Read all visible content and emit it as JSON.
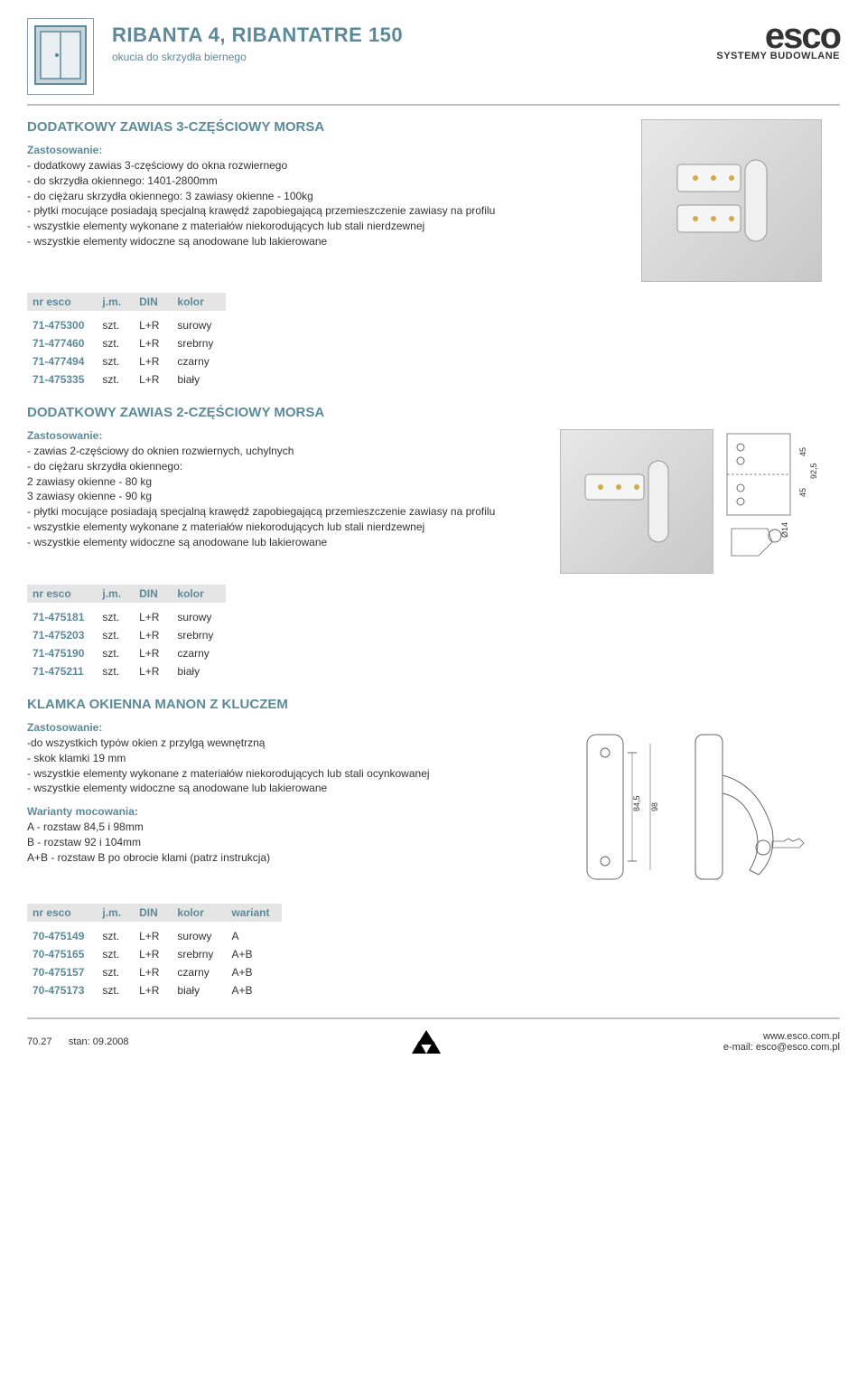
{
  "header": {
    "title": "RIBANTA 4, RIBANTATRE 150",
    "subtitle": "okucia do skrzydła biernego",
    "brand_name": "esco",
    "brand_tagline": "SYSTEMY BUDOWLANE"
  },
  "section1": {
    "heading": "DODATKOWY ZAWIAS 3-CZĘŚCIOWY MORSA",
    "sub": "Zastosowanie:",
    "lines": [
      "- dodatkowy zawias 3-częściowy do okna rozwiernego",
      "- do skrzydła okiennego: 1401-2800mm",
      "- do ciężaru skrzydła okiennego: 3 zawiasy okienne - 100kg",
      "- płytki mocujące posiadają specjalną krawędź zapobiegającą przemieszczenie zawiasy na profilu",
      "- wszystkie elementy wykonane z materiałów niekorodujących lub stali nierdzewnej",
      "- wszystkie elementy widoczne są anodowane lub lakierowane"
    ],
    "table": {
      "cols": [
        "nr esco",
        "j.m.",
        "DIN",
        "kolor"
      ],
      "rows": [
        [
          "71-475300",
          "szt.",
          "L+R",
          "surowy"
        ],
        [
          "71-477460",
          "szt.",
          "L+R",
          "srebrny"
        ],
        [
          "71-477494",
          "szt.",
          "L+R",
          "czarny"
        ],
        [
          "71-475335",
          "szt.",
          "L+R",
          "biały"
        ]
      ]
    }
  },
  "section2": {
    "heading": "DODATKOWY ZAWIAS 2-CZĘŚCIOWY MORSA",
    "sub": "Zastosowanie:",
    "lines": [
      "- zawias 2-częściowy do oknien rozwiernych, uchylnych",
      "- do ciężaru skrzydła okiennego:",
      "2 zawiasy okienne - 80 kg",
      "3 zawiasy okienne - 90 kg",
      "- płytki mocujące posiadają specjalną krawędź zapobiegającą przemieszczenie zawiasy na profilu",
      "- wszystkie elementy wykonane z materiałów niekorodujących lub stali nierdzewnej",
      "- wszystkie elementy widoczne są anodowane lub lakierowane"
    ],
    "table": {
      "cols": [
        "nr esco",
        "j.m.",
        "DIN",
        "kolor"
      ],
      "rows": [
        [
          "71-475181",
          "szt.",
          "L+R",
          "surowy"
        ],
        [
          "71-475203",
          "szt.",
          "L+R",
          "srebrny"
        ],
        [
          "71-475190",
          "szt.",
          "L+R",
          "czarny"
        ],
        [
          "71-475211",
          "szt.",
          "L+R",
          "biały"
        ]
      ]
    },
    "drawing": {
      "h1": "45",
      "h2": "45",
      "total": "92,5",
      "dia": "Ø14"
    }
  },
  "section3": {
    "heading": "KLAMKA OKIENNA MANON Z KLUCZEM",
    "sub": "Zastosowanie:",
    "lines": [
      "-do wszystkich typów okien z przylgą wewnętrzną",
      "- skok klamki 19 mm",
      "- wszystkie elementy wykonane z materiałów niekorodujących lub stali ocynkowanej",
      "- wszystkie elementy widoczne są anodowane lub lakierowane"
    ],
    "variants_heading": "Warianty mocowania:",
    "variants": [
      "A      - rozstaw 84,5 i 98mm",
      "B      - rozstaw 92 i 104mm",
      "A+B - rozstaw B po obrocie klami (patrz instrukcja)"
    ],
    "table": {
      "cols": [
        "nr esco",
        "j.m.",
        "DIN",
        "kolor",
        "wariant"
      ],
      "rows": [
        [
          "70-475149",
          "szt.",
          "L+R",
          "surowy",
          "A"
        ],
        [
          "70-475165",
          "szt.",
          "L+R",
          "srebrny",
          "A+B"
        ],
        [
          "70-475157",
          "szt.",
          "L+R",
          "czarny",
          "A+B"
        ],
        [
          "70-475173",
          "szt.",
          "L+R",
          "biały",
          "A+B"
        ]
      ]
    },
    "drawing": {
      "d1": "84,5",
      "d2": "98"
    }
  },
  "footer": {
    "page": "70.27",
    "date": "stan: 09.2008",
    "url": "www.esco.com.pl",
    "email": "e-mail: esco@esco.com.pl"
  },
  "colors": {
    "accent": "#5c8a9a",
    "header_bg": "#e5e5e5"
  }
}
